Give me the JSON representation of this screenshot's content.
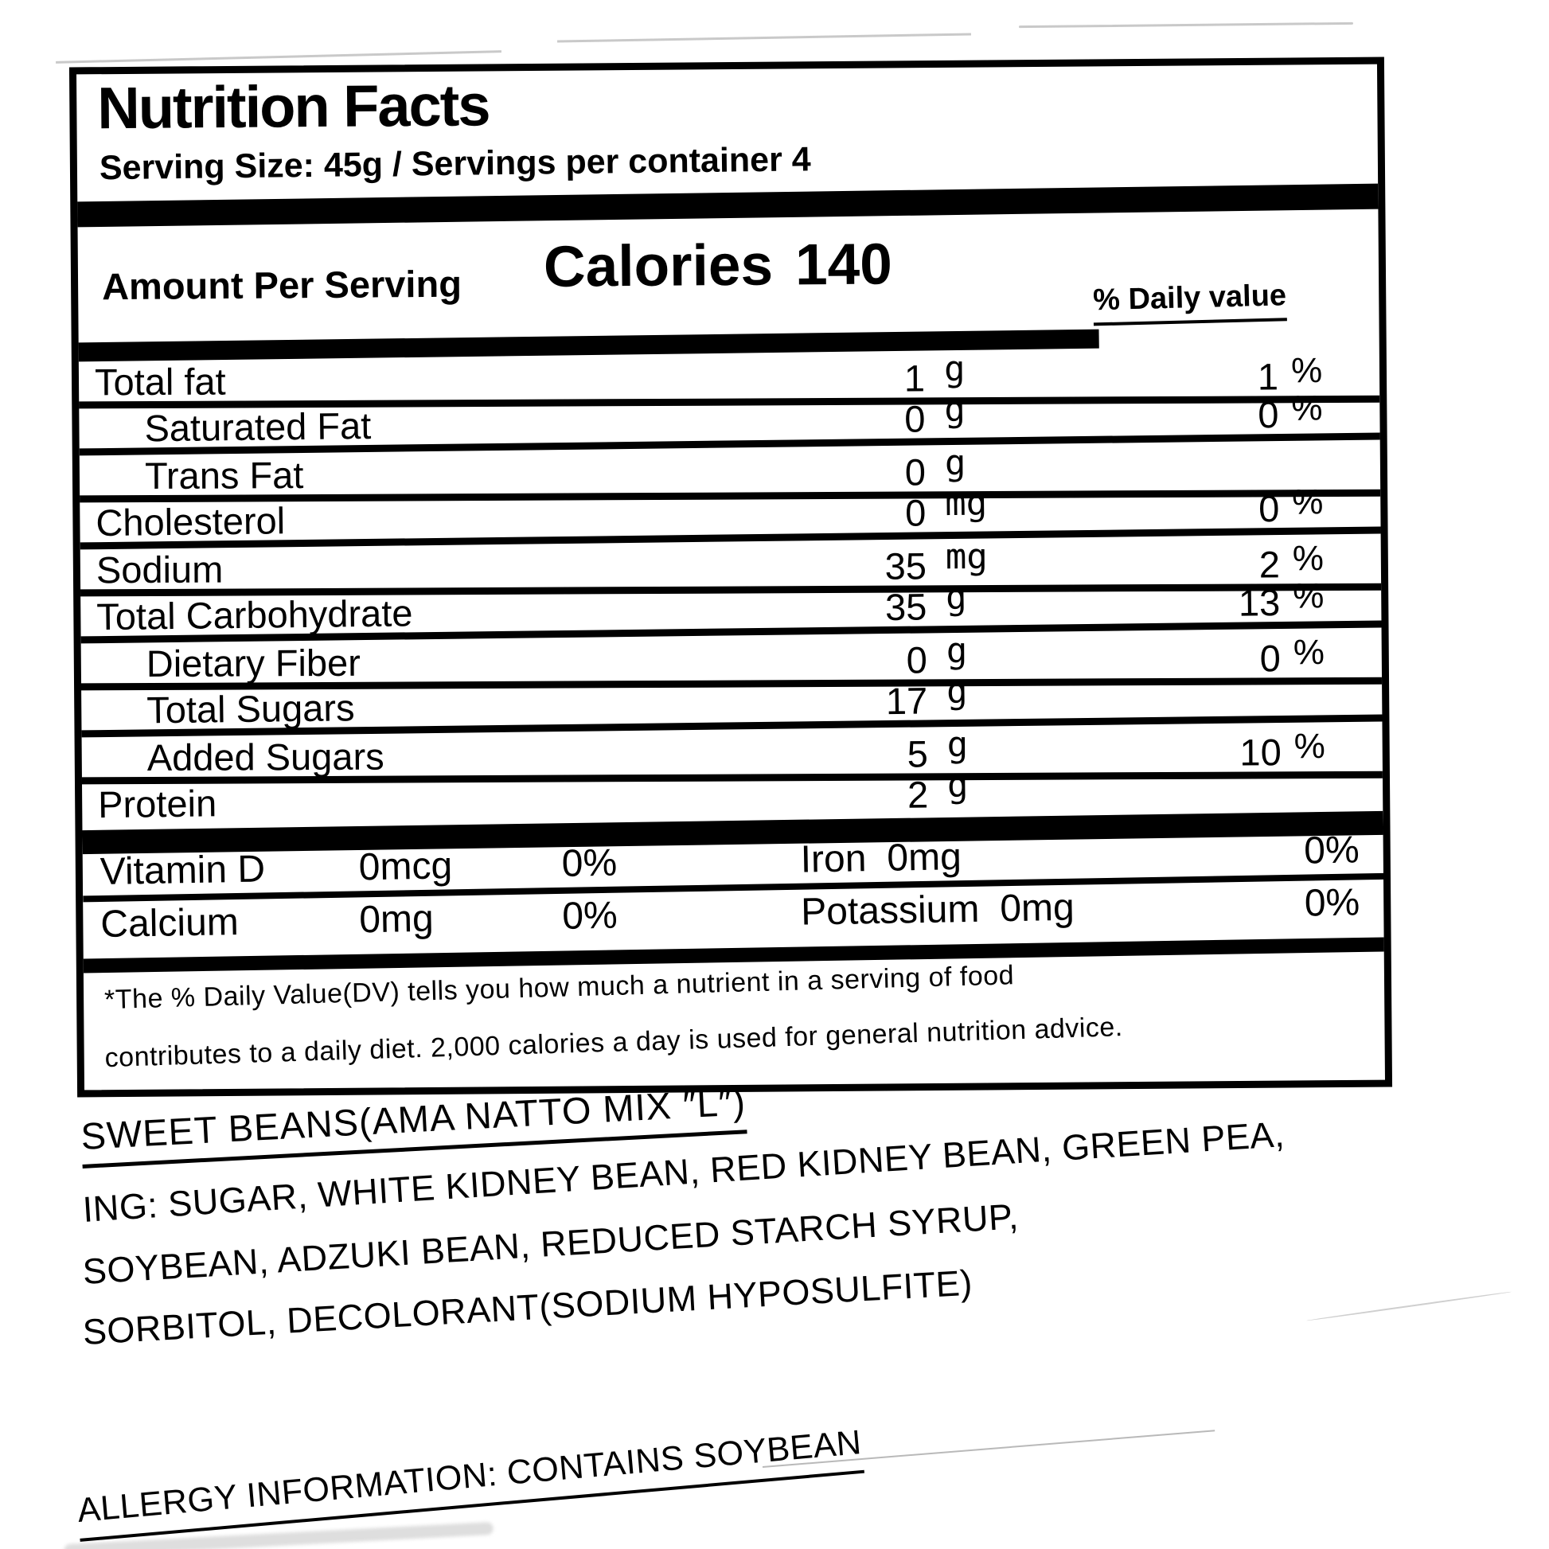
{
  "page": {
    "background": "#ffffff",
    "ink": "#000000"
  },
  "nutrition_label": {
    "title": "Nutrition Facts",
    "serving_line": "Serving Size: 45g / Servings per container 4",
    "amount_per_serving": "Amount Per Serving",
    "calories_label": "Calories",
    "calories_value": "140",
    "daily_value_header": "% Daily value",
    "rows": [
      {
        "name": "Total fat",
        "amount": "1",
        "unit": "g",
        "dv": "1",
        "dv_unit": "%"
      },
      {
        "name": "Saturated Fat",
        "amount": "0",
        "unit": "g",
        "dv": "0",
        "dv_unit": "%"
      },
      {
        "name": "Trans Fat",
        "amount": "0",
        "unit": "g",
        "dv": "",
        "dv_unit": ""
      },
      {
        "name": "Cholesterol",
        "amount": "0",
        "unit": "mg",
        "dv": "0",
        "dv_unit": "%"
      },
      {
        "name": "Sodium",
        "amount": "35",
        "unit": "mg",
        "dv": "2",
        "dv_unit": "%"
      },
      {
        "name": "Total Carbohydrate",
        "amount": "35",
        "unit": "g",
        "dv": "13",
        "dv_unit": "%"
      },
      {
        "name": "Dietary Fiber",
        "amount": "0",
        "unit": "g",
        "dv": "0",
        "dv_unit": "%"
      },
      {
        "name": "Total Sugars",
        "amount": "17",
        "unit": "g",
        "dv": "",
        "dv_unit": ""
      },
      {
        "name": "Added Sugars",
        "amount": "5",
        "unit": "g",
        "dv": "10",
        "dv_unit": "%"
      },
      {
        "name": "Protein",
        "amount": "2",
        "unit": "g",
        "dv": "",
        "dv_unit": ""
      }
    ],
    "micronutrients": [
      {
        "name": "Vitamin D",
        "amount": "0mcg",
        "dv": "0%",
        "name2": "Iron",
        "amount2": "0mg",
        "dv2": "0%"
      },
      {
        "name": "Calcium",
        "amount": "0mg",
        "dv": "0%",
        "name2": "Potassium",
        "amount2": "0mg",
        "dv2": "0%"
      }
    ],
    "footnote_line1": "*The % Daily Value(DV) tells you how much a nutrient in a serving of food",
    "footnote_line2": "contributes to a daily diet. 2,000 calories a day is used for general nutrition advice."
  },
  "product": {
    "name": "SWEET BEANS(AMA NATTO MIX ″L″)",
    "ingredients_line1": "ING: SUGAR, WHITE KIDNEY BEAN, RED KIDNEY BEAN, GREEN PEA,",
    "ingredients_line2": "SOYBEAN, ADZUKI BEAN, REDUCED STARCH SYRUP,",
    "ingredients_line3": "SORBITOL, DECOLORANT(SODIUM HYPOSULFITE)",
    "allergy_info": "ALLERGY INFORMATION: CONTAINS SOYBEAN"
  }
}
